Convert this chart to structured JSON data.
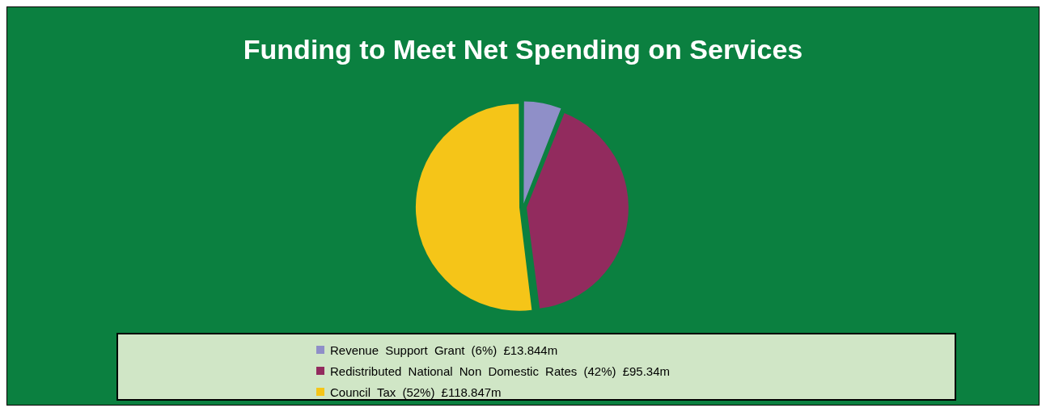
{
  "chart_data": {
    "type": "pie",
    "title": "Funding to Meet Net Spending on Services",
    "categories": [
      "Revenue Support Grant  (6%)  £13.844m",
      "Redistributed National Non Domestic Rates  (42%)  £95.34m",
      "Council Tax  (52%)  £118.847m"
    ],
    "values": [
      6,
      42,
      52
    ],
    "colors": [
      "#8f8fc8",
      "#922b5e",
      "#f5c518"
    ],
    "legend": "bottom"
  }
}
